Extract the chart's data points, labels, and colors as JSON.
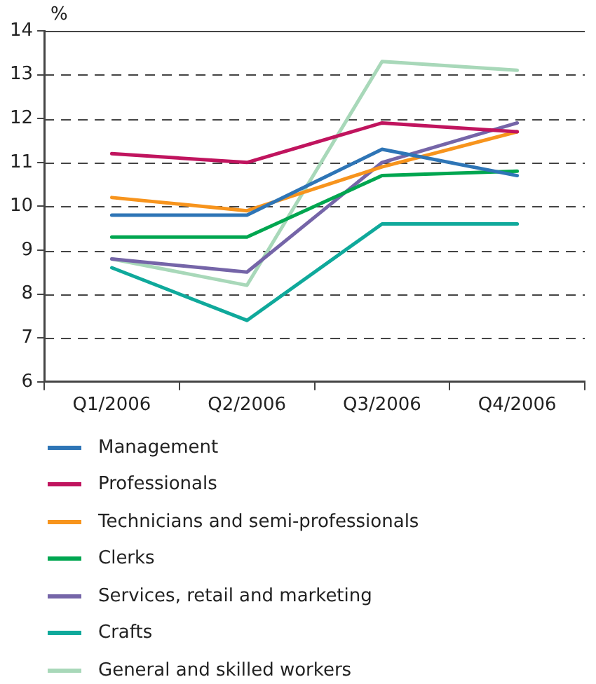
{
  "chart_data": {
    "type": "line",
    "ylabel": "%",
    "categories": [
      "Q1/2006",
      "Q2/2006",
      "Q3/2006",
      "Q4/2006"
    ],
    "ylim": [
      6,
      14
    ],
    "yticks": [
      6,
      7,
      8,
      9,
      10,
      11,
      12,
      13,
      14
    ],
    "grid": "y",
    "legend": "bottom",
    "marker": "none",
    "line_style": "solid",
    "series": [
      {
        "name": "Management",
        "color": "#2e75b6",
        "values": [
          9.8,
          9.8,
          11.3,
          10.7
        ]
      },
      {
        "name": "Professionals",
        "color": "#c0145e",
        "values": [
          11.2,
          11.0,
          11.9,
          11.7
        ]
      },
      {
        "name": "Technicians and semi-professionals",
        "color": "#f7941d",
        "values": [
          10.2,
          9.9,
          10.9,
          11.7
        ]
      },
      {
        "name": "Clerks",
        "color": "#00a650",
        "values": [
          9.3,
          9.3,
          10.7,
          10.8
        ]
      },
      {
        "name": "Services, retail and marketing",
        "color": "#7565a8",
        "values": [
          8.8,
          8.5,
          11.0,
          11.9
        ]
      },
      {
        "name": "Crafts",
        "color": "#0fa99b",
        "values": [
          8.6,
          7.4,
          9.6,
          9.6
        ]
      },
      {
        "name": "General and skilled workers",
        "color": "#a8d8b9",
        "values": [
          8.8,
          8.2,
          13.3,
          13.1
        ]
      }
    ]
  }
}
